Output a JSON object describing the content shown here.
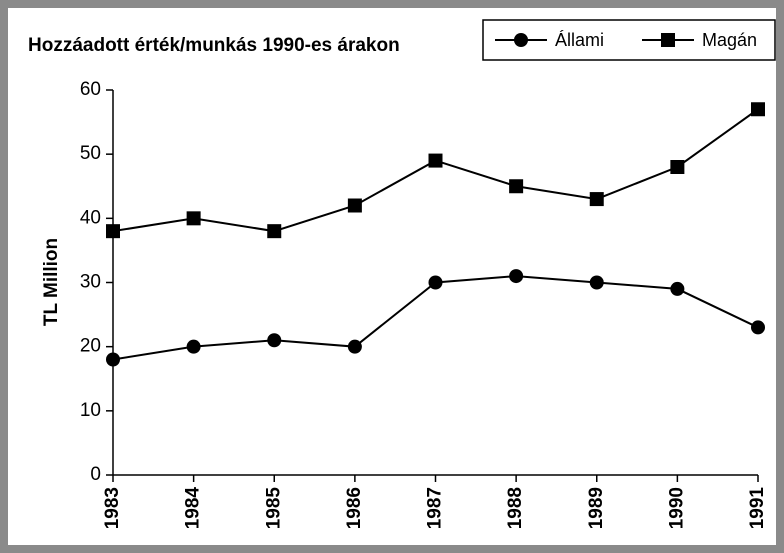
{
  "chart_data": {
    "type": "line",
    "title": "Hozzáadott érték/munkás 1990-es árakon",
    "y_label": "TL Million",
    "categories": [
      "1983",
      "1984",
      "1985",
      "1986",
      "1987",
      "1988",
      "1989",
      "1990",
      "1991"
    ],
    "series": [
      {
        "name": "Állami",
        "color": "#000000",
        "marker": "circle",
        "values": [
          18,
          20,
          21,
          20,
          30,
          31,
          30,
          29,
          23
        ]
      },
      {
        "name": "Magán",
        "color": "#000000",
        "marker": "square",
        "values": [
          38,
          40,
          38,
          42,
          49,
          45,
          43,
          48,
          57
        ]
      }
    ],
    "ylim": [
      0,
      60
    ],
    "yticks": [
      0,
      10,
      20,
      30,
      40,
      50,
      60
    ],
    "grid": false,
    "legend": "top-right"
  }
}
